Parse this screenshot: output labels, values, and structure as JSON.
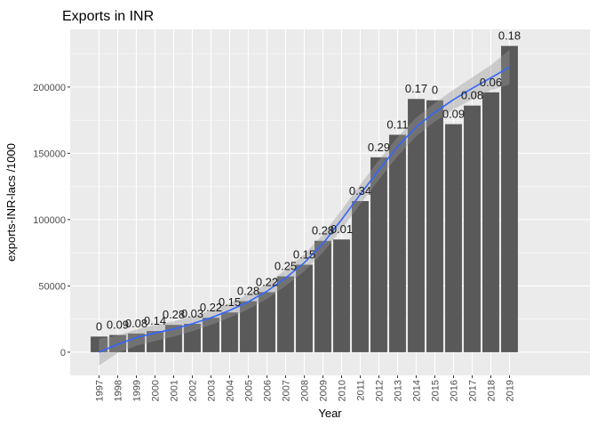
{
  "chart_data": {
    "type": "bar",
    "title": "Exports in INR",
    "xlabel": "Year",
    "ylabel": "exports-INR-lacs /1000",
    "categories": [
      "1997",
      "1998",
      "1999",
      "2000",
      "2001",
      "2002",
      "2003",
      "2004",
      "2005",
      "2006",
      "2007",
      "2008",
      "2009",
      "2010",
      "2011",
      "2012",
      "2013",
      "2014",
      "2015",
      "2016",
      "2017",
      "2018",
      "2019"
    ],
    "values": [
      11800,
      13000,
      14100,
      16000,
      20600,
      21400,
      26000,
      30000,
      38500,
      45300,
      57200,
      66000,
      84000,
      85000,
      114000,
      147000,
      164000,
      191000,
      190000,
      172000,
      186000,
      196000,
      231000
    ],
    "labels": [
      "0",
      "0.09",
      "0.08",
      "0.14",
      "0.28",
      "0.03",
      "0.22",
      "0.15",
      "0.28",
      "0.22",
      "0.25",
      "0.15",
      "0.28",
      "0.01",
      "0.34",
      "0.29",
      "0.11",
      "0.17",
      "0",
      "0.09",
      "0.08",
      "0.06",
      "0.18"
    ],
    "smooth": [
      0,
      6000,
      11000,
      14500,
      17500,
      21500,
      26000,
      31500,
      38000,
      46000,
      56000,
      67500,
      82000,
      100000,
      119000,
      137500,
      155000,
      170000,
      181000,
      190500,
      199000,
      207000,
      215000
    ],
    "band_width": [
      10000,
      6500,
      6200,
      6000,
      5800,
      5600,
      5400,
      5400,
      5600,
      5800,
      6000,
      6400,
      6800,
      7200,
      7400,
      7400,
      7200,
      7000,
      7000,
      7500,
      8200,
      9500,
      13000
    ],
    "yticks": [
      0,
      50000,
      100000,
      150000,
      200000
    ],
    "ylim": [
      -17500,
      243500
    ],
    "grid": true,
    "colors": {
      "bar": "#595959",
      "panel": "#ebebeb",
      "grid": "#ffffff",
      "smooth": "#3366ff",
      "band": "#999999"
    }
  }
}
